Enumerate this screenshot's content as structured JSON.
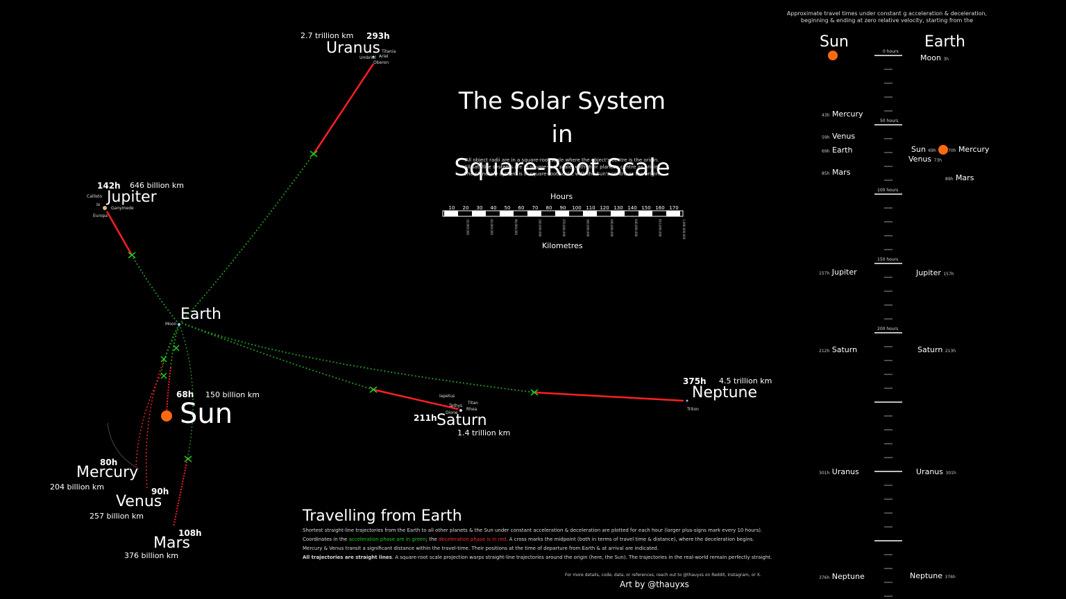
{
  "title_line1": "The Solar System in",
  "title_line2": "Square-Root Scale",
  "subtitle": [
    "All object radii are in a square-root scale where the object's centre is the origin.",
    "All satellite systems are in square-root scale, with their planet's centre as origin.",
    "The planetary system is in square-root scale, with the Sun's centre as the origin."
  ],
  "scale_bar": {
    "hours_label": "Hours",
    "km_label": "Kilometres",
    "hour_ticks": [
      "10",
      "20",
      "30",
      "40",
      "50",
      "60",
      "70",
      "80",
      "90",
      "100",
      "110",
      "120",
      "130",
      "140",
      "150",
      "160",
      "170"
    ],
    "km_ticks": [
      "10,000,000",
      "40,000,000",
      "90,000,000",
      "160,000,000",
      "250,000,000",
      "360,000,000",
      "490,000,000",
      "640,000,000",
      "810,000,000",
      "1,000,000,000"
    ]
  },
  "colors": {
    "accel": "#20b020",
    "decel": "#ff2020",
    "background": "#000000",
    "sun": "#ff6a10"
  },
  "map": {
    "earth": {
      "name": "Earth",
      "moon": "Moon"
    },
    "sun": {
      "name": "Sun",
      "hours": "68h",
      "distance": "150 billion km"
    },
    "mercury": {
      "name": "Mercury",
      "hours": "80h",
      "distance": "204 billion km"
    },
    "venus": {
      "name": "Venus",
      "hours": "90h",
      "distance": "257 billion km"
    },
    "mars": {
      "name": "Mars",
      "hours": "108h",
      "distance": "376 billion km"
    },
    "jupiter": {
      "name": "Jupiter",
      "hours": "142h",
      "distance": "646 billion km",
      "moons": [
        "Callisto",
        "Io",
        "Ganymede",
        "Europa"
      ]
    },
    "saturn": {
      "name": "Saturn",
      "hours": "211h",
      "distance": "1.4 trillion km",
      "moons": [
        "Iapetus",
        "Titan",
        "Tethys",
        "Rhea",
        "Dione"
      ]
    },
    "uranus": {
      "name": "Uranus",
      "hours": "293h",
      "distance": "2.7 trillion km",
      "moons": [
        "Titania",
        "Umbriel",
        "Ariel",
        "Oberon"
      ]
    },
    "neptune": {
      "name": "Neptune",
      "hours": "375h",
      "distance": "4.5 trillion km",
      "moons": [
        "Triton"
      ]
    }
  },
  "panel": {
    "heading_line1": "Approximate travel times under constant g acceleration & deceleration,",
    "heading_line2": "beginning & ending at zero relative velocity, starting from the",
    "col_sun": "Sun",
    "col_earth": "Earth",
    "hour_marks": [
      "0 hours",
      "50 hours",
      "100 hours",
      "150 hours",
      "200 hours"
    ],
    "sun_rows": [
      {
        "h": "43h",
        "name": "Mercury"
      },
      {
        "h": "59h",
        "name": "Venus"
      },
      {
        "h": "69h",
        "name": "Earth"
      },
      {
        "h": "85h",
        "name": "Mars"
      },
      {
        "h": "157h",
        "name": "Jupiter"
      },
      {
        "h": "212h",
        "name": "Saturn"
      },
      {
        "h": "301h",
        "name": "Uranus"
      },
      {
        "h": "376h",
        "name": "Neptune"
      }
    ],
    "earth_rows": [
      {
        "h": "3h",
        "name": "Moon"
      },
      {
        "h": "69h",
        "name": "Sun"
      },
      {
        "h": "70h",
        "name": "Mercury"
      },
      {
        "h": "73h",
        "name": "Venus"
      },
      {
        "h": "89h",
        "name": "Mars"
      },
      {
        "h": "157h",
        "name": "Jupiter"
      },
      {
        "h": "213h",
        "name": "Saturn"
      },
      {
        "h": "301h",
        "name": "Uranus"
      },
      {
        "h": "376h",
        "name": "Neptune"
      }
    ]
  },
  "footer": {
    "title": "Travelling from Earth",
    "line1": "Shortest straight-line trajectories from the Earth to all other planets & the Sun under constant    acceleration & deceleration are plotted for each hour (larger plus-signs mark every 10 hours).",
    "line2_a": "Coordinates in the ",
    "line2_green": "acceleration phase are in green",
    "line2_b": "; the ",
    "line2_red": "deceleration phase is in red",
    "line2_c": ". A cross marks the midpoint (both in terms of travel time & distance), where the deceleration begins.",
    "line3": "Mercury & Venus transit a significant distance within the travel-time. Their positions at the time of departure from Earth & at arrival are indicated.",
    "line4_bold": "All trajectories are straight lines",
    "line4_rest": ". A square-root scale projection warps straight-line trajectories around the origin (here, the Sun). The trajectories in the real-world remain perfectly straight.",
    "contact": "For more details, code, data, or references, reach out to @thauyxs on Reddit, Instagram, or X.",
    "credit": "Art by @thauyxs"
  }
}
